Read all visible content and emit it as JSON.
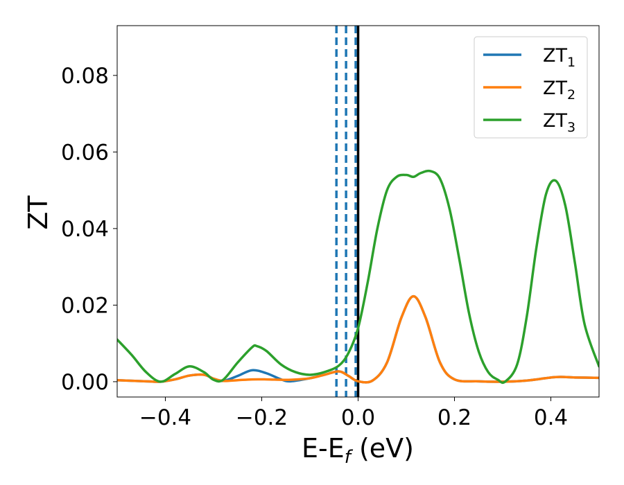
{
  "chart_data": {
    "type": "line",
    "title": "",
    "xlabel": "E-E",
    "xlabel_subscript": "f",
    "xlabel_unit": " (eV)",
    "ylabel": "ZT",
    "xlim": [
      -0.5,
      0.5
    ],
    "ylim": [
      -0.004,
      0.093
    ],
    "xticks": [
      -0.4,
      -0.2,
      0.0,
      0.2,
      0.4
    ],
    "xtick_labels": [
      "−0.4",
      "−0.2",
      "0.0",
      "0.2",
      "0.4"
    ],
    "yticks": [
      0.0,
      0.02,
      0.04,
      0.06,
      0.08
    ],
    "ytick_labels": [
      "0.00",
      "0.02",
      "0.04",
      "0.06",
      "0.08"
    ],
    "grid": false,
    "legend_position": "top-right",
    "vertical_lines": [
      {
        "x": -0.045,
        "style": "dashed",
        "color": "#1f77b4"
      },
      {
        "x": -0.025,
        "style": "dashed",
        "color": "#1f77b4"
      },
      {
        "x": -0.005,
        "style": "dashed",
        "color": "#1f77b4"
      },
      {
        "x": 0.0,
        "style": "solid",
        "color": "#000000"
      }
    ],
    "series": [
      {
        "name": "ZT",
        "subscript": "1",
        "color": "#1f77b4",
        "x": [
          -0.5,
          -0.44,
          -0.41,
          -0.38,
          -0.35,
          -0.32,
          -0.3,
          -0.28,
          -0.25,
          -0.22,
          -0.19,
          -0.16,
          -0.14,
          -0.1,
          -0.07,
          -0.04,
          -0.02,
          0.0,
          0.03,
          0.06,
          0.09,
          0.115,
          0.14,
          0.17,
          0.2,
          0.25,
          0.3,
          0.35,
          0.41,
          0.45,
          0.5
        ],
        "y": [
          0.0004,
          0.0001,
          0.0,
          0.0006,
          0.0016,
          0.0018,
          0.0008,
          0.0002,
          0.0015,
          0.003,
          0.0022,
          0.0006,
          0.0001,
          0.0009,
          0.0018,
          0.0027,
          0.0015,
          0.0001,
          0.0003,
          0.005,
          0.0168,
          0.0223,
          0.0168,
          0.005,
          0.0006,
          0.0001,
          0.0,
          0.0003,
          0.0012,
          0.0011,
          0.001
        ]
      },
      {
        "name": "ZT",
        "subscript": "2",
        "color": "#ff7f0e",
        "x": [
          -0.5,
          -0.44,
          -0.41,
          -0.38,
          -0.35,
          -0.32,
          -0.3,
          -0.28,
          -0.25,
          -0.22,
          -0.19,
          -0.16,
          -0.14,
          -0.1,
          -0.07,
          -0.04,
          -0.02,
          0.0,
          0.03,
          0.06,
          0.09,
          0.115,
          0.14,
          0.17,
          0.2,
          0.25,
          0.3,
          0.35,
          0.41,
          0.45,
          0.5
        ],
        "y": [
          0.0004,
          0.0001,
          0.0,
          0.0006,
          0.0016,
          0.0018,
          0.0008,
          0.0002,
          0.0004,
          0.0006,
          0.0006,
          0.0005,
          0.0005,
          0.0009,
          0.0018,
          0.0027,
          0.0015,
          0.0001,
          0.0003,
          0.005,
          0.0168,
          0.0223,
          0.0168,
          0.005,
          0.0006,
          0.0001,
          0.0,
          0.0003,
          0.0012,
          0.0011,
          0.001
        ]
      },
      {
        "name": "ZT",
        "subscript": "3",
        "color": "#2ca02c",
        "x": [
          -0.5,
          -0.47,
          -0.44,
          -0.41,
          -0.38,
          -0.35,
          -0.32,
          -0.3,
          -0.28,
          -0.25,
          -0.22,
          -0.21,
          -0.19,
          -0.16,
          -0.13,
          -0.1,
          -0.07,
          -0.04,
          -0.02,
          0.0,
          0.02,
          0.04,
          0.06,
          0.08,
          0.1,
          0.115,
          0.13,
          0.15,
          0.17,
          0.19,
          0.21,
          0.23,
          0.25,
          0.27,
          0.29,
          0.305,
          0.33,
          0.35,
          0.37,
          0.39,
          0.41,
          0.43,
          0.45,
          0.47,
          0.5
        ],
        "y": [
          0.011,
          0.007,
          0.0025,
          0.0,
          0.002,
          0.004,
          0.0025,
          0.0005,
          0.0005,
          0.005,
          0.009,
          0.0093,
          0.008,
          0.0045,
          0.0025,
          0.0018,
          0.0025,
          0.0042,
          0.0075,
          0.014,
          0.026,
          0.04,
          0.05,
          0.0535,
          0.054,
          0.0535,
          0.0545,
          0.055,
          0.053,
          0.045,
          0.032,
          0.018,
          0.008,
          0.0025,
          0.0005,
          0.0,
          0.0045,
          0.017,
          0.035,
          0.049,
          0.0525,
          0.046,
          0.031,
          0.015,
          0.004
        ]
      }
    ]
  }
}
